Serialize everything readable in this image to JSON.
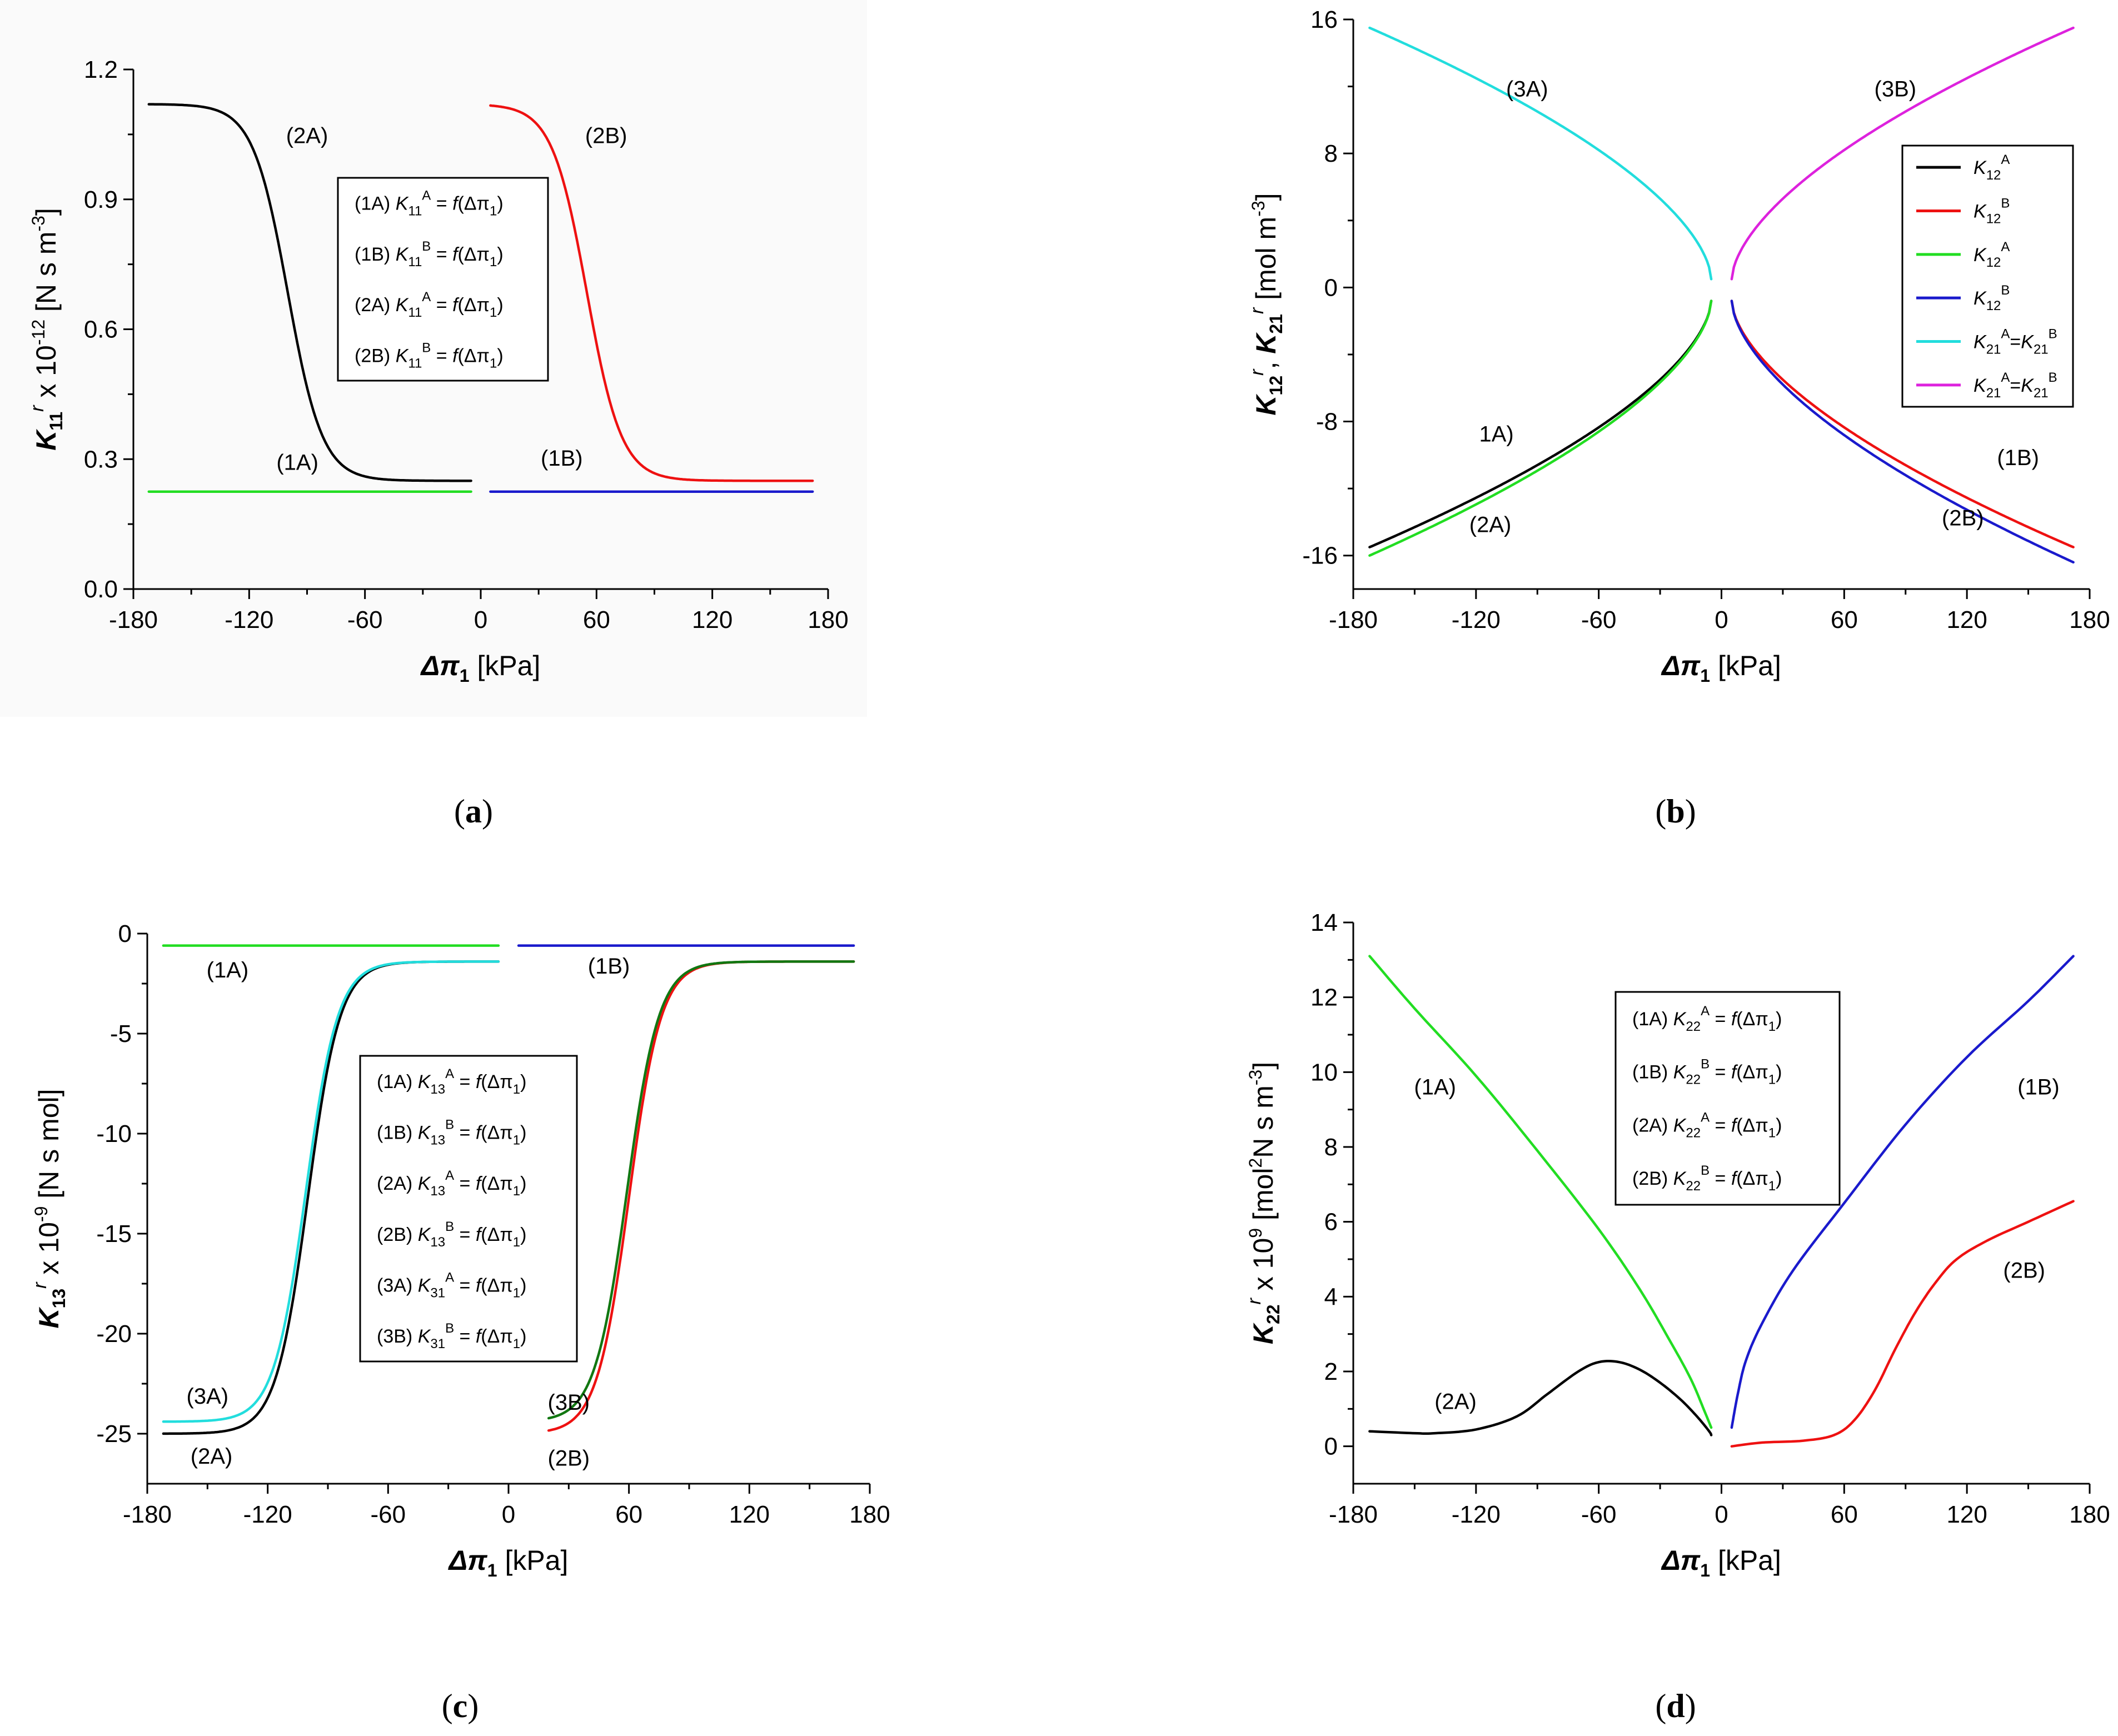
{
  "chart_data": [
    {
      "type": "line",
      "panel": "a",
      "caption": "(a)",
      "xlabel": "Δπ1 [kPa]",
      "xlabel_parts": {
        "sym": "Δπ",
        "sub": "1",
        "unit": " [kPa]"
      },
      "ylabel_parts": {
        "sym": "K",
        "sub": "11",
        "sup": "r",
        "rest": " x 10",
        "exp": "-12",
        "unit": " [N s m",
        "unitexp": "-3",
        "close": "]"
      },
      "xlim": [
        -180,
        180
      ],
      "ylim": [
        0,
        1.2
      ],
      "xticks": [
        -180,
        -120,
        -60,
        0,
        60,
        120,
        180
      ],
      "yticks": [
        0.0,
        0.3,
        0.6,
        0.9,
        1.2
      ],
      "ytick_labels": [
        "0.0",
        "0.3",
        "0.6",
        "0.9",
        "1.2"
      ],
      "series": [
        {
          "name": "(1A)",
          "color": "#22dd22",
          "kind": "const",
          "x0": -172,
          "x1": -5,
          "y": 0.225
        },
        {
          "name": "(1B)",
          "color": "#1a1acc",
          "kind": "const",
          "x0": 5,
          "x1": 172,
          "y": 0.225
        },
        {
          "name": "(2A)",
          "color": "#000000",
          "kind": "sig",
          "x0": -172,
          "x1": -5,
          "lo": 0.25,
          "hi": 1.12,
          "c": -100,
          "w": 9,
          "dir": -1
        },
        {
          "name": "(2B)",
          "color": "#ee1111",
          "kind": "sig",
          "x0": 5,
          "x1": 172,
          "lo": 0.25,
          "hi": 1.12,
          "c": 55,
          "w": 9,
          "dir": -1
        }
      ],
      "annotations": [
        {
          "text": "(2A)",
          "x": -90,
          "y": 1.03
        },
        {
          "text": "(2B)",
          "x": 65,
          "y": 1.03
        },
        {
          "text": "(1A)",
          "x": -95,
          "y": 0.275
        },
        {
          "text": "(1B)",
          "x": 42,
          "y": 0.285
        }
      ],
      "legend": {
        "position": "center",
        "entries": [
          {
            "pre": "(1A) ",
            "K": "K",
            "sub": "11",
            "sup": "A",
            "post": " = ",
            "f": "f",
            "arg": "(Δπ",
            "argsub": "1",
            "close": ")"
          },
          {
            "pre": "(1B) ",
            "K": "K",
            "sub": "11",
            "sup": "B",
            "post": " = ",
            "f": "f",
            "arg": "(Δπ",
            "argsub": "1",
            "close": ")"
          },
          {
            "pre": "(2A) ",
            "K": "K",
            "sub": "11",
            "sup": "A",
            "post": " = ",
            "f": "f",
            "arg": "(Δπ",
            "argsub": "1",
            "close": ")"
          },
          {
            "pre": "(2B) ",
            "K": "K",
            "sub": "11",
            "sup": "B",
            "post": " = ",
            "f": "f",
            "arg": "(Δπ",
            "argsub": "1",
            "close": ")"
          }
        ]
      }
    },
    {
      "type": "line",
      "panel": "b",
      "caption": "(b)",
      "xlabel": "Δπ1 [kPa]",
      "xlabel_parts": {
        "sym": "Δπ",
        "sub": "1",
        "unit": " [kPa]"
      },
      "ylabel_parts": {
        "sym": "K",
        "sub": "12",
        "sup": "r",
        "rest": ", ",
        "sym2": "K",
        "sub2": "21",
        "sup2": "r",
        "unit": " [mol m",
        "unitexp": "-3",
        "close": "]"
      },
      "xlim": [
        -180,
        180
      ],
      "ylim": [
        -18,
        16
      ],
      "xticks": [
        -180,
        -120,
        -60,
        0,
        60,
        120,
        180
      ],
      "yticks": [
        -16,
        -8,
        0,
        8,
        16
      ],
      "ytick_labels": [
        "-16",
        "-8",
        "0",
        "8",
        "16"
      ],
      "series": [
        {
          "name": "K12A",
          "color": "#000000",
          "kind": "pow",
          "x0": -172,
          "x1": -5,
          "y0": -15.5,
          "y1": -0.8,
          "p": 0.6,
          "side": "L"
        },
        {
          "name": "K12B",
          "color": "#ee1111",
          "kind": "pow",
          "x0": 5,
          "x1": 172,
          "y0": -15.5,
          "y1": -0.8,
          "p": 0.6,
          "side": "R"
        },
        {
          "name": "K12A",
          "color": "#22dd22",
          "kind": "pow",
          "x0": -172,
          "x1": -5,
          "y0": -16.0,
          "y1": -0.8,
          "p": 0.6,
          "side": "L"
        },
        {
          "name": "K12B",
          "color": "#1a1acc",
          "kind": "pow",
          "x0": 5,
          "x1": 172,
          "y0": -16.4,
          "y1": -0.8,
          "p": 0.6,
          "side": "R"
        },
        {
          "name": "K21A=K21B",
          "color": "#22dddd",
          "kind": "pow",
          "x0": -172,
          "x1": -5,
          "y0": 15.5,
          "y1": 0.5,
          "p": 0.6,
          "side": "L"
        },
        {
          "name": "K21A=K21B",
          "color": "#dd22dd",
          "kind": "pow",
          "x0": 5,
          "x1": 172,
          "y0": 15.5,
          "y1": 0.5,
          "p": 0.6,
          "side": "R"
        }
      ],
      "annotations": [
        {
          "text": "(3A)",
          "x": -95,
          "y": 11.4
        },
        {
          "text": "(3B)",
          "x": 85,
          "y": 11.4
        },
        {
          "text": "1A)",
          "x": -110,
          "y": -9.2
        },
        {
          "text": "(2A)",
          "x": -113,
          "y": -14.6
        },
        {
          "text": "(1B)",
          "x": 145,
          "y": -10.6
        },
        {
          "text": "(2B)",
          "x": 118,
          "y": -14.2
        }
      ],
      "legend": {
        "position": "right",
        "entries": [
          {
            "color": "#000000",
            "K": "K",
            "sub": "12",
            "sup": "A"
          },
          {
            "color": "#ee1111",
            "K": "K",
            "sub": "12",
            "sup": "B"
          },
          {
            "color": "#22dd22",
            "K": "K",
            "sub": "12",
            "sup": "A"
          },
          {
            "color": "#1a1acc",
            "K": "K",
            "sub": "12",
            "sup": "B"
          },
          {
            "color": "#22dddd",
            "K": "K",
            "sub": "21",
            "sup": "A",
            "eq": "=",
            "K2": "K",
            "sub2": "21",
            "sup2": "B"
          },
          {
            "color": "#dd22dd",
            "K": "K",
            "sub": "21",
            "sup": "A",
            "eq": "=",
            "K2": "K",
            "sub2": "21",
            "sup2": "B"
          }
        ]
      }
    },
    {
      "type": "line",
      "panel": "c",
      "caption": "(c)",
      "xlabel": "Δπ1 [kPa]",
      "xlabel_parts": {
        "sym": "Δπ",
        "sub": "1",
        "unit": " [kPa]"
      },
      "ylabel_parts": {
        "sym": "K",
        "sub": "13",
        "sup": "r",
        "rest": " x 10",
        "exp": "-9",
        "unit": " [N s mol]"
      },
      "xlim": [
        -180,
        180
      ],
      "ylim": [
        -27.5,
        0
      ],
      "xticks": [
        -180,
        -120,
        -60,
        0,
        60,
        120,
        180
      ],
      "yticks": [
        -25,
        -20,
        -15,
        -10,
        -5,
        0
      ],
      "ytick_labels": [
        "-25",
        "-20",
        "-15",
        "-10",
        "-5",
        "0"
      ],
      "series": [
        {
          "name": "(1A)",
          "color": "#22dd22",
          "kind": "const",
          "x0": -172,
          "x1": -5,
          "y": -0.6
        },
        {
          "name": "(1B)",
          "color": "#1a1acc",
          "kind": "const",
          "x0": 5,
          "x1": 172,
          "y": -0.6
        },
        {
          "name": "(2A)",
          "color": "#000000",
          "kind": "sig",
          "x0": -172,
          "x1": -5,
          "lo": -25.0,
          "hi": -1.4,
          "c": -100,
          "w": 8,
          "dir": 1
        },
        {
          "name": "(3A)",
          "color": "#22dddd",
          "kind": "sig",
          "x0": -172,
          "x1": -5,
          "lo": -24.4,
          "hi": -1.4,
          "c": -101,
          "w": 8,
          "dir": 1
        },
        {
          "name": "(2B)",
          "color": "#ee1111",
          "kind": "sig",
          "x0": 20,
          "x1": 172,
          "lo": -25.0,
          "hi": -1.4,
          "c": 60,
          "w": 8,
          "dir": 1
        },
        {
          "name": "(3B)",
          "color": "#117711",
          "kind": "sig",
          "x0": 20,
          "x1": 172,
          "lo": -24.4,
          "hi": -1.4,
          "c": 59,
          "w": 8,
          "dir": 1
        }
      ],
      "annotations": [
        {
          "text": "(1A)",
          "x": -140,
          "y": -2.2
        },
        {
          "text": "(1B)",
          "x": 50,
          "y": -2.0
        },
        {
          "text": "(3A)",
          "x": -150,
          "y": -23.5
        },
        {
          "text": "(2A)",
          "x": -148,
          "y": -26.5
        },
        {
          "text": "(3B)",
          "x": 30,
          "y": -23.8
        },
        {
          "text": "(2B)",
          "x": 30,
          "y": -26.6
        }
      ],
      "legend": {
        "position": "center",
        "entries": [
          {
            "pre": "(1A) ",
            "K": "K",
            "sub": "13",
            "sup": "A",
            "post": " = ",
            "f": "f",
            "arg": "(Δπ",
            "argsub": "1",
            "close": ")"
          },
          {
            "pre": "(1B) ",
            "K": "K",
            "sub": "13",
            "sup": "B",
            "post": " = ",
            "f": "f",
            "arg": "(Δπ",
            "argsub": "1",
            "close": ")"
          },
          {
            "pre": "(2A) ",
            "K": "K",
            "sub": "13",
            "sup": "A",
            "post": " = ",
            "f": "f",
            "arg": "(Δπ",
            "argsub": "1",
            "close": ")"
          },
          {
            "pre": "(2B) ",
            "K": "K",
            "sub": "13",
            "sup": "B",
            "post": " = ",
            "f": "f",
            "arg": "(Δπ",
            "argsub": "1",
            "close": ")"
          },
          {
            "pre": "(3A) ",
            "K": "K",
            "sub": "31",
            "sup": "A",
            "post": " = ",
            "f": "f",
            "arg": "(Δπ",
            "argsub": "1",
            "close": ")"
          },
          {
            "pre": "(3B) ",
            "K": "K",
            "sub": "31",
            "sup": "B",
            "post": " = ",
            "f": "f",
            "arg": "(Δπ",
            "argsub": "1",
            "close": ")"
          }
        ]
      }
    },
    {
      "type": "line",
      "panel": "d",
      "caption": "(d)",
      "xlabel": "Δπ1 [kPa]",
      "xlabel_parts": {
        "sym": "Δπ",
        "sub": "1",
        "unit": " [kPa]"
      },
      "ylabel_parts": {
        "sym": "K",
        "sub": "22",
        "sup": "r",
        "rest": " x 10",
        "exp": "9",
        "unit": " [mol",
        "unitexp": "2",
        "unit2": "N s m",
        "unitexp2": "-3",
        "close": "]"
      },
      "xlim": [
        -180,
        180
      ],
      "ylim": [
        -1,
        14
      ],
      "xticks": [
        -180,
        -120,
        -60,
        0,
        60,
        120,
        180
      ],
      "yticks": [
        0,
        2,
        4,
        6,
        8,
        10,
        12,
        14
      ],
      "ytick_labels": [
        "0",
        "2",
        "4",
        "6",
        "8",
        "10",
        "12",
        "14"
      ],
      "series": [
        {
          "name": "(1A)",
          "color": "#22dd22",
          "kind": "pts",
          "points": [
            [
              -172,
              13.1
            ],
            [
              -150,
              11.7
            ],
            [
              -120,
              9.9
            ],
            [
              -90,
              7.9
            ],
            [
              -60,
              5.8
            ],
            [
              -40,
              4.2
            ],
            [
              -25,
              2.8
            ],
            [
              -15,
              1.8
            ],
            [
              -8,
              0.9
            ],
            [
              -5,
              0.5
            ]
          ]
        },
        {
          "name": "(2A)",
          "color": "#000000",
          "kind": "pts",
          "points": [
            [
              -172,
              0.4
            ],
            [
              -150,
              0.35
            ],
            [
              -140,
              0.35
            ],
            [
              -120,
              0.45
            ],
            [
              -100,
              0.8
            ],
            [
              -85,
              1.4
            ],
            [
              -70,
              2.0
            ],
            [
              -60,
              2.25
            ],
            [
              -50,
              2.25
            ],
            [
              -40,
              2.05
            ],
            [
              -30,
              1.7
            ],
            [
              -20,
              1.25
            ],
            [
              -12,
              0.8
            ],
            [
              -6,
              0.4
            ],
            [
              -5,
              0.3
            ]
          ]
        },
        {
          "name": "(1B)",
          "color": "#1a1acc",
          "kind": "pts",
          "points": [
            [
              5,
              0.5
            ],
            [
              8,
              1.4
            ],
            [
              12,
              2.3
            ],
            [
              20,
              3.3
            ],
            [
              35,
              4.7
            ],
            [
              60,
              6.5
            ],
            [
              90,
              8.6
            ],
            [
              120,
              10.4
            ],
            [
              150,
              11.9
            ],
            [
              172,
              13.1
            ]
          ]
        },
        {
          "name": "(2B)",
          "color": "#ee1111",
          "kind": "pts",
          "points": [
            [
              5,
              0.0
            ],
            [
              20,
              0.1
            ],
            [
              40,
              0.15
            ],
            [
              55,
              0.3
            ],
            [
              65,
              0.7
            ],
            [
              75,
              1.5
            ],
            [
              85,
              2.6
            ],
            [
              95,
              3.6
            ],
            [
              105,
              4.4
            ],
            [
              115,
              5.0
            ],
            [
              130,
              5.5
            ],
            [
              150,
              6.0
            ],
            [
              172,
              6.55
            ]
          ]
        }
      ],
      "annotations": [
        {
          "text": "(1A)",
          "x": -140,
          "y": 9.4
        },
        {
          "text": "(2A)",
          "x": -130,
          "y": 1.0
        },
        {
          "text": "(1B)",
          "x": 155,
          "y": 9.4
        },
        {
          "text": "(2B)",
          "x": 148,
          "y": 4.5
        }
      ],
      "legend": {
        "position": "top-center",
        "entries": [
          {
            "pre": "(1A) ",
            "K": "K",
            "sub": "22",
            "sup": "A",
            "post": " = ",
            "f": "f",
            "arg": "(Δπ",
            "argsub": "1",
            "close": ")"
          },
          {
            "pre": "(1B) ",
            "K": "K",
            "sub": "22",
            "sup": "B",
            "post": " = ",
            "f": "f",
            "arg": "(Δπ",
            "argsub": "1",
            "close": ")"
          },
          {
            "pre": "(2A) ",
            "K": "K",
            "sub": "22",
            "sup": "A",
            "post": " = ",
            "f": "f",
            "arg": "(Δπ",
            "argsub": "1",
            "close": ")"
          },
          {
            "pre": "(2B) ",
            "K": "K",
            "sub": "22",
            "sup": "B",
            "post": " = ",
            "f": "f",
            "arg": "(Δπ",
            "argsub": "1",
            "close": ")"
          }
        ]
      }
    }
  ]
}
